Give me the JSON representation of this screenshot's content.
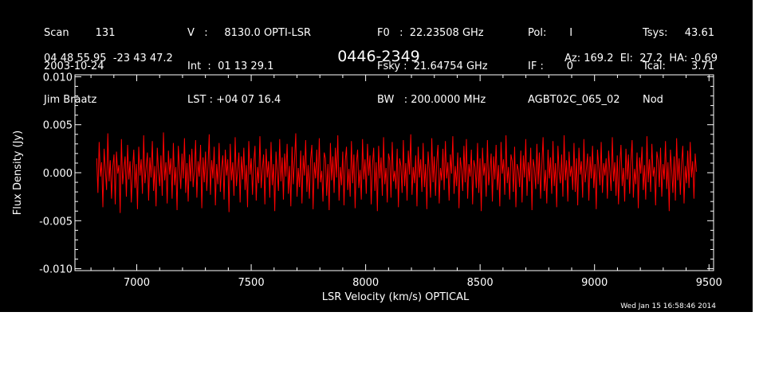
{
  "header": {
    "col1": [
      "Scan        131",
      "2003-10-24",
      "Jim Braatz"
    ],
    "col2": [
      "V   :     8130.0 OPTI-LSR",
      "Int  :  01 13 29.1",
      "LST : +04 07 16.4"
    ],
    "col3": [
      "F0   :  22.23508 GHz",
      "Fsky :  21.64754 GHz",
      "BW   : 200.0000 MHz"
    ],
    "col4": [
      "Pol:       I",
      "IF :       0",
      "AGBT02C_065_02"
    ],
    "col5_labels": [
      "Tsys:",
      "Tcal:",
      "Nod"
    ],
    "col5_values": [
      "43.61",
      "3.71",
      ""
    ],
    "coords": "04 48 55.95  -23 43 47.2",
    "source": "0446-2349",
    "azel": "Az: 169.2  El:  27.2  HA: -0.69"
  },
  "timestamp": "Wed Jan 15 16:58:46 2014",
  "chart_data": {
    "type": "line",
    "xlabel": "LSR Velocity (km/s) OPTICAL",
    "ylabel": "Flux Density (Jy)",
    "xlim": [
      6730,
      9520
    ],
    "ylim": [
      -0.0102,
      0.0102
    ],
    "xticks": [
      7000,
      7500,
      8000,
      8500,
      9000,
      9500
    ],
    "xtick_labels": [
      "7000",
      "7500",
      "8000",
      "8500",
      "9000",
      "9500"
    ],
    "yticks": [
      0.01,
      0.005,
      0.0,
      -0.005,
      -0.01
    ],
    "ytick_labels": [
      "0.010",
      "0.005",
      "0.000",
      "-0.005",
      "-0.010"
    ],
    "series_color": "#ff0000",
    "series": [
      {
        "x_start": 6825,
        "x_end": 9445,
        "values": [
          0.0015,
          -0.0021,
          0.0032,
          -0.0004,
          0.0011,
          -0.0036,
          0.0025,
          0.0003,
          -0.0018,
          0.0041,
          -0.0009,
          0.0013,
          -0.0027,
          0.0006,
          0.0019,
          -0.0033,
          0.0022,
          -0.0001,
          0.0008,
          -0.0042,
          0.0035,
          -0.0012,
          0.0004,
          0.0017,
          -0.0025,
          0.0029,
          -0.0007,
          0.0012,
          -0.0031,
          0.0003,
          0.0024,
          -0.0016,
          0.0009,
          -0.0038,
          0.0027,
          -0.0003,
          0.0014,
          -0.0022,
          0.0039,
          -0.0011,
          0.0005,
          0.0021,
          -0.0029,
          0.0016,
          -0.0005,
          0.0033,
          -0.0019,
          0.0007,
          -0.0035,
          0.0026,
          0.0001,
          -0.0014,
          0.0018,
          -0.0024,
          0.0042,
          -0.0008,
          0.0011,
          -0.0032,
          0.0023,
          -0.0002,
          0.0015,
          -0.0027,
          0.0031,
          -0.0013,
          0.0006,
          -0.0039,
          0.0028,
          0.0004,
          -0.0017,
          0.002,
          -0.0006,
          0.0036,
          -0.0021,
          0.001,
          -0.003,
          0.0019,
          -0.0009,
          0.0025,
          -0.0015,
          0.0002,
          0.0034,
          -0.0026,
          0.0012,
          -0.0004,
          0.0029,
          -0.0037,
          0.0016,
          -0.001,
          0.0022,
          -0.0019,
          0.0007,
          0.004,
          -0.0023,
          0.0013,
          -0.0006,
          0.0027,
          -0.0034,
          0.0009,
          -0.0012,
          0.0031,
          -0.002,
          0.0005,
          0.0018,
          -0.0028,
          0.0024,
          -0.0003,
          0.0014,
          -0.0041,
          0.003,
          -0.0008,
          0.0011,
          -0.0024,
          0.0037,
          -0.0014,
          0.0003,
          0.0021,
          -0.0031,
          0.0017,
          -0.0007,
          0.0026,
          -0.0018,
          0.0008,
          -0.0036,
          0.0033,
          -0.0002,
          0.0015,
          -0.0023,
          0.001,
          0.0028,
          -0.0029,
          0.0006,
          -0.0011,
          0.0038,
          -0.0016,
          0.0004,
          0.0019,
          -0.0033,
          0.0025,
          -0.0005,
          0.0012,
          -0.0026,
          0.0032,
          -0.0013,
          0.0009,
          -0.004,
          0.0022,
          0.0001,
          -0.0019,
          0.0035,
          -0.0009,
          0.0016,
          -0.0028,
          0.002,
          -0.0004,
          0.003,
          -0.0022,
          0.0007,
          -0.0035,
          0.0027,
          -0.0012,
          0.0013,
          0.0041,
          -0.0025,
          0.0005,
          -0.0015,
          0.0023,
          -0.0032,
          0.0018,
          -0.0003,
          0.0034,
          -0.002,
          0.0008,
          -0.0027,
          0.0014,
          0.0029,
          -0.0038,
          0.0011,
          -0.0006,
          0.0024,
          -0.0017,
          0.0036,
          -0.001,
          0.0002,
          -0.003,
          0.0021,
          0.0015,
          -0.0024,
          0.0009,
          -0.0039,
          0.0031,
          -0.0008,
          0.0017,
          -0.0021,
          0.0026,
          -0.0005,
          0.0039,
          -0.0029,
          0.0006,
          -0.0013,
          0.0022,
          -0.0034,
          0.0012,
          0.0027,
          -0.0018,
          0.0004,
          -0.0025,
          0.0033,
          -0.0011,
          0.0019,
          -0.0037,
          0.001,
          0.0024,
          -0.0016,
          0.0003,
          -0.0028,
          0.0035,
          -0.0007,
          0.0014,
          -0.0022,
          0.003,
          -0.0003,
          0.0018,
          -0.0033,
          0.0008,
          0.0026,
          -0.0019,
          0.0011,
          -0.004,
          0.0028,
          -0.0006,
          0.0016,
          -0.0024,
          0.0037,
          -0.0012,
          0.0005,
          -0.0031,
          0.002,
          0.0013,
          -0.0026,
          0.0032,
          -0.0009,
          0.0002,
          -0.0017,
          0.0025,
          -0.0036,
          0.0015,
          0.0007,
          -0.0021,
          0.0034,
          -0.0014,
          0.001,
          -0.0029,
          0.0023,
          -0.0002,
          0.004,
          -0.0023,
          0.0006,
          -0.0011,
          0.0018,
          -0.0035,
          0.0027,
          -0.0005,
          0.0014,
          -0.002,
          0.0031,
          -0.0015,
          0.0009,
          -0.0038,
          0.0022,
          0.0003,
          -0.0026,
          0.0036,
          -0.001,
          0.0017,
          -0.0024,
          0.0012,
          0.0029,
          -0.0032,
          0.0005,
          -0.0008,
          0.0025,
          -0.0018,
          0.0033,
          -0.0006,
          0.0011,
          -0.0029,
          0.0019,
          -0.0001,
          0.0038,
          -0.0022,
          0.0007,
          -0.0014,
          0.0021,
          -0.0037,
          0.0016,
          0.0004,
          -0.0019,
          0.0028,
          -0.001,
          0.0035,
          -0.0027,
          0.0009,
          -0.0004,
          0.0024,
          -0.0033,
          0.0013,
          0.0006,
          -0.0016,
          0.0031,
          -0.0021,
          0.0015,
          -0.004,
          0.0026,
          -0.0003,
          0.001,
          -0.0025,
          0.0034,
          -0.0013,
          0.0002,
          0.002,
          -0.003,
          0.0017,
          -0.0007,
          0.0029,
          -0.0018,
          0.0008,
          -0.0035,
          0.0032,
          -0.0001,
          0.0014,
          -0.0023,
          0.0039,
          -0.0011,
          0.0006,
          -0.0028,
          0.0019,
          0.0012,
          -0.002,
          0.0027,
          -0.0036,
          0.0009,
          0.0003,
          -0.0015,
          0.0023,
          -0.0031,
          0.0018,
          -0.0005,
          0.0035,
          -0.0024,
          0.0011,
          -0.0009,
          0.0026,
          -0.0039,
          0.0014,
          0.0005,
          -0.0017,
          0.003,
          -0.0012,
          0.0021,
          -0.0027,
          0.0008,
          0.0037,
          -0.0019,
          0.0003,
          -0.0032,
          0.0024,
          -0.0006,
          0.0016,
          -0.0022,
          0.0033,
          -0.0014,
          0.001,
          -0.0036,
          0.0028,
          0.0001,
          -0.0011,
          0.0019,
          -0.0025,
          0.0039,
          -0.0008,
          0.0013,
          -0.003,
          0.0022,
          -0.0004,
          0.0007,
          -0.0018,
          0.0031,
          -0.002,
          0.0015,
          -0.0034,
          0.0026,
          -0.0002,
          0.0012,
          -0.0026,
          0.0035,
          -0.001,
          0.0004,
          0.002,
          -0.0029,
          0.0017,
          -0.0006,
          0.0028,
          -0.0016,
          0.0009,
          -0.0038,
          0.0024,
          0.0006,
          -0.0013,
          0.0032,
          -0.0021,
          0.001,
          -0.0003,
          0.0015,
          -0.0027,
          0.0023,
          0.0002,
          -0.0019,
          0.0037,
          -0.0009,
          0.0011,
          -0.0024,
          0.0018,
          -0.0033,
          0.0008,
          0.0029,
          -0.0014,
          0.0005,
          -0.003,
          0.0025,
          -0.0007,
          0.0019,
          -0.0022,
          0.0012,
          0.0034,
          -0.0026,
          0.0004,
          -0.0012,
          0.0021,
          -0.0037,
          0.0016,
          -0.0001,
          0.0027,
          -0.0018,
          0.0008,
          -0.0028,
          0.0038,
          -0.001,
          0.0014,
          -0.002,
          0.003,
          -0.0004,
          0.0006,
          -0.0034,
          0.0022,
          0.0013,
          -0.0015,
          0.0026,
          -0.0025,
          0.0009,
          -0.0007,
          0.0033,
          -0.0017,
          0.0011,
          -0.004,
          0.0024,
          0.0003,
          -0.0021,
          0.0017,
          -0.0029,
          0.0036,
          -0.0008,
          0.0015,
          -0.0023,
          0.001,
          0.0028,
          -0.0032,
          0.0007,
          -0.0011,
          0.0023,
          -0.0016,
          0.0032,
          -0.0005,
          0.0012,
          -0.0027,
          0.002,
          0.0001
        ]
      }
    ]
  }
}
